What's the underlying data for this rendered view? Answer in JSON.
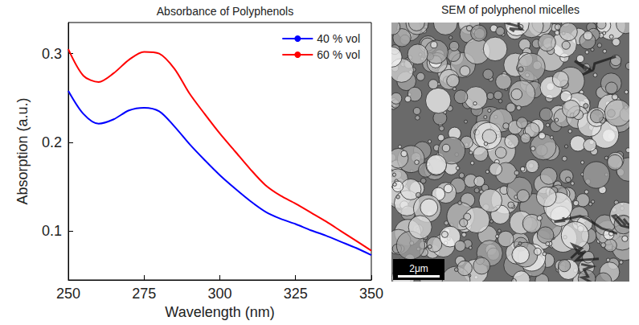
{
  "chart_data": {
    "type": "line",
    "title": "Absorbance of Polyphenols",
    "x_label": "Wavelength (nm)",
    "y_label": "Absorption (a.u.)",
    "x": [
      250,
      255,
      260,
      265,
      270,
      275,
      280,
      285,
      290,
      295,
      300,
      305,
      310,
      315,
      320,
      325,
      330,
      335,
      340,
      345,
      350
    ],
    "series": [
      {
        "name": "40 % vol",
        "color": "#0000ff",
        "values": [
          0.258,
          0.232,
          0.221,
          0.226,
          0.236,
          0.239,
          0.235,
          0.218,
          0.198,
          0.18,
          0.163,
          0.148,
          0.134,
          0.122,
          0.114,
          0.108,
          0.101,
          0.095,
          0.088,
          0.081,
          0.073
        ]
      },
      {
        "name": "60 % vol",
        "color": "#ff0000",
        "values": [
          0.305,
          0.275,
          0.268,
          0.278,
          0.293,
          0.302,
          0.3,
          0.283,
          0.255,
          0.232,
          0.21,
          0.19,
          0.17,
          0.152,
          0.14,
          0.131,
          0.121,
          0.111,
          0.1,
          0.089,
          0.078
        ]
      }
    ],
    "xlim": [
      250,
      350
    ],
    "xticks": [
      250,
      275,
      300,
      325,
      350
    ],
    "ylim": [
      0.045,
      0.335
    ],
    "yticks": [
      0.1,
      0.2,
      0.3
    ],
    "grid": false,
    "legend": "upper right"
  },
  "image": {
    "title": "SEM of polyphenol micelles",
    "scale_bar": "2μm"
  }
}
